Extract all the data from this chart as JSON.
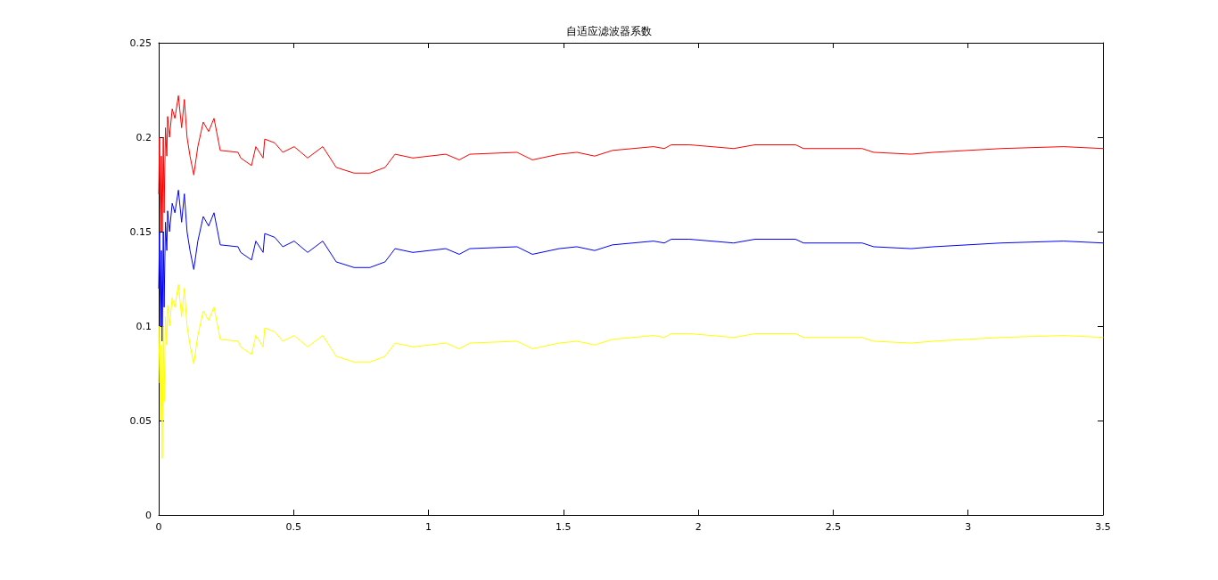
{
  "chart_data": {
    "type": "line",
    "title": "自适应滤波器系数",
    "x": [
      0,
      0.003,
      0.007,
      0.01,
      0.013,
      0.017,
      0.02,
      0.025,
      0.03,
      0.033,
      0.04,
      0.05,
      0.06,
      0.073,
      0.085,
      0.095,
      0.105,
      0.116,
      0.13,
      0.145,
      0.165,
      0.185,
      0.205,
      0.228,
      0.294,
      0.304,
      0.344,
      0.36,
      0.387,
      0.393,
      0.43,
      0.46,
      0.502,
      0.552,
      0.608,
      0.658,
      0.724,
      0.783,
      0.839,
      0.876,
      0.942,
      1.064,
      1.114,
      1.153,
      1.328,
      1.385,
      1.484,
      1.55,
      1.616,
      1.682,
      1.834,
      1.874,
      1.9,
      1.966,
      2.131,
      2.211,
      2.36,
      2.39,
      2.607,
      2.65,
      2.789,
      2.872,
      3.123,
      3.354,
      3.5
    ],
    "series": [
      {
        "color": "#ff0000",
        "values": [
          0.17,
          0.2,
          0.15,
          0.19,
          0.15,
          0.2,
          0.16,
          0.205,
          0.19,
          0.211,
          0.2,
          0.215,
          0.21,
          0.222,
          0.205,
          0.22,
          0.2,
          0.19,
          0.18,
          0.195,
          0.208,
          0.203,
          0.21,
          0.193,
          0.192,
          0.189,
          0.185,
          0.195,
          0.189,
          0.199,
          0.197,
          0.192,
          0.195,
          0.189,
          0.195,
          0.184,
          0.181,
          0.181,
          0.184,
          0.191,
          0.189,
          0.191,
          0.188,
          0.191,
          0.192,
          0.188,
          0.191,
          0.192,
          0.19,
          0.193,
          0.195,
          0.194,
          0.196,
          0.196,
          0.194,
          0.196,
          0.196,
          0.194,
          0.194,
          0.192,
          0.191,
          0.192,
          0.194,
          0.195,
          0.194
        ]
      },
      {
        "color": "#0000ff",
        "values": [
          0.12,
          0.15,
          0.1,
          0.14,
          0.092,
          0.15,
          0.11,
          0.155,
          0.14,
          0.161,
          0.15,
          0.165,
          0.16,
          0.172,
          0.155,
          0.17,
          0.15,
          0.14,
          0.13,
          0.145,
          0.158,
          0.153,
          0.16,
          0.143,
          0.142,
          0.139,
          0.135,
          0.145,
          0.139,
          0.149,
          0.147,
          0.142,
          0.145,
          0.139,
          0.145,
          0.134,
          0.131,
          0.131,
          0.134,
          0.141,
          0.139,
          0.141,
          0.138,
          0.141,
          0.142,
          0.138,
          0.141,
          0.142,
          0.14,
          0.143,
          0.145,
          0.144,
          0.146,
          0.146,
          0.144,
          0.146,
          0.146,
          0.144,
          0.144,
          0.142,
          0.141,
          0.142,
          0.144,
          0.145,
          0.144
        ]
      },
      {
        "color": "#ffff00",
        "values": [
          0.07,
          0.1,
          0.05,
          0.09,
          0.03,
          0.1,
          0.06,
          0.105,
          0.09,
          0.111,
          0.1,
          0.115,
          0.11,
          0.122,
          0.105,
          0.12,
          0.1,
          0.09,
          0.08,
          0.095,
          0.108,
          0.103,
          0.11,
          0.093,
          0.092,
          0.089,
          0.085,
          0.095,
          0.089,
          0.099,
          0.097,
          0.092,
          0.095,
          0.089,
          0.095,
          0.084,
          0.081,
          0.081,
          0.084,
          0.091,
          0.089,
          0.091,
          0.088,
          0.091,
          0.092,
          0.088,
          0.091,
          0.092,
          0.09,
          0.093,
          0.095,
          0.094,
          0.096,
          0.096,
          0.094,
          0.096,
          0.096,
          0.094,
          0.094,
          0.092,
          0.091,
          0.092,
          0.094,
          0.095,
          0.094
        ]
      }
    ],
    "xlim": [
      0,
      3.5
    ],
    "xticks": [
      0,
      0.5,
      1,
      1.5,
      2,
      2.5,
      3,
      3.5
    ],
    "ylim": [
      0,
      0.25
    ],
    "yticks": [
      0,
      0.05,
      0.1,
      0.15,
      0.2,
      0.25
    ],
    "grid": false,
    "marker": "none",
    "line_style": "solid"
  }
}
